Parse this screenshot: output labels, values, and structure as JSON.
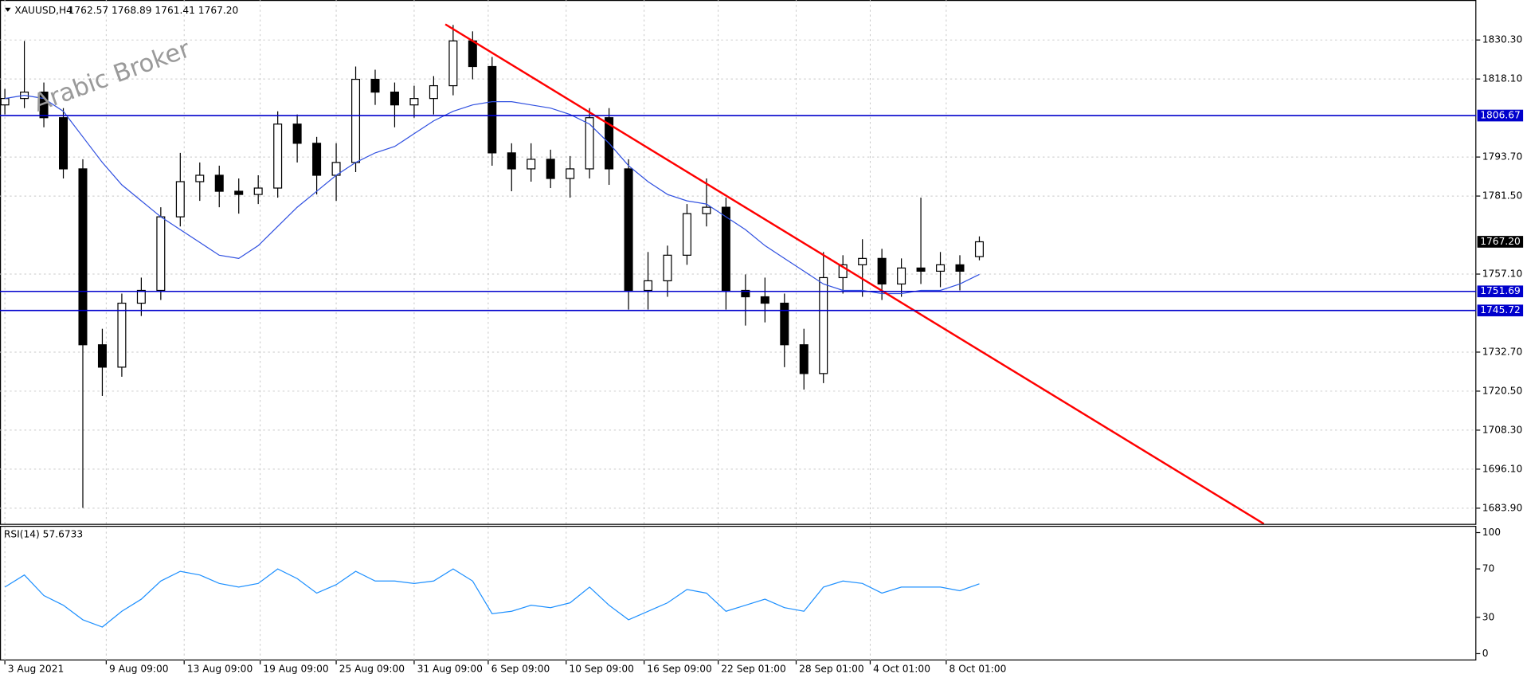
{
  "chart_data": {
    "type": "candlestick",
    "symbol": "XAUUSD,H4",
    "quote": "1762.57 1768.89 1761.41 1767.20",
    "watermark": "Arabic Broker",
    "xlim": [
      -1.25,
      377.5
    ],
    "ylim": [
      1679.0,
      1842.8
    ],
    "x": [
      0,
      5,
      10,
      15,
      20,
      25,
      30,
      35,
      40,
      45,
      50,
      55,
      60,
      65,
      70,
      75,
      80,
      85,
      90,
      95,
      100,
      105,
      110,
      115,
      120,
      125,
      130,
      135,
      140,
      145,
      150,
      155,
      160,
      165,
      170,
      175,
      180,
      185,
      190,
      195,
      200,
      205,
      210,
      215,
      220,
      225,
      230,
      235,
      240,
      245,
      250
    ],
    "open": [
      1810,
      1812,
      1814,
      1806,
      1790,
      1735,
      1728,
      1748,
      1752,
      1775,
      1786,
      1788,
      1783,
      1782,
      1784,
      1804,
      1798,
      1788,
      1792,
      1818,
      1814,
      1810,
      1812,
      1816,
      1830,
      1822,
      1795,
      1790,
      1793,
      1787,
      1790,
      1806,
      1790,
      1752,
      1755,
      1763,
      1776,
      1778,
      1752,
      1750,
      1748,
      1735,
      1726,
      1756,
      1760,
      1762,
      1754,
      1759,
      1758,
      1760,
      1762.57
    ],
    "high": [
      1815,
      1830,
      1817,
      1809,
      1793,
      1740,
      1751,
      1756,
      1778,
      1795,
      1792,
      1791,
      1787,
      1788,
      1808,
      1807,
      1800,
      1798,
      1822,
      1821,
      1817,
      1816,
      1819,
      1835,
      1833,
      1825,
      1798,
      1798,
      1796,
      1794,
      1809,
      1809,
      1793,
      1764,
      1766,
      1779,
      1787,
      1781,
      1757,
      1756,
      1751,
      1740,
      1764,
      1763,
      1768,
      1765,
      1762,
      1781,
      1764,
      1763,
      1768.89
    ],
    "low": [
      1807,
      1809,
      1803,
      1787,
      1684,
      1719,
      1725,
      1744,
      1749,
      1772,
      1780,
      1778,
      1776,
      1779,
      1781,
      1792,
      1782,
      1780,
      1789,
      1810,
      1803,
      1806,
      1807,
      1813,
      1818,
      1791,
      1783,
      1786,
      1784,
      1781,
      1787,
      1785,
      1746,
      1746,
      1750,
      1760,
      1772,
      1746,
      1741,
      1742,
      1728,
      1721,
      1723,
      1751,
      1750,
      1749,
      1750,
      1754,
      1753,
      1752,
      1761.41
    ],
    "close": [
      1812,
      1814,
      1806,
      1790,
      1735,
      1728,
      1748,
      1752,
      1775,
      1786,
      1788,
      1783,
      1782,
      1784,
      1804,
      1798,
      1788,
      1792,
      1818,
      1814,
      1810,
      1812,
      1816,
      1830,
      1822,
      1795,
      1790,
      1793,
      1787,
      1790,
      1806,
      1790,
      1752,
      1755,
      1763,
      1776,
      1778,
      1752,
      1750,
      1748,
      1735,
      1726,
      1756,
      1760,
      1762,
      1754,
      1759,
      1758,
      1760,
      1758,
      1767.2
    ],
    "up_color": "#ffffff",
    "down_color": "#000000",
    "ma": {
      "color": "#3050e0",
      "values": [
        1812,
        1813,
        1812,
        1808,
        1800,
        1792,
        1785,
        1780,
        1775,
        1771,
        1767,
        1763,
        1762,
        1766,
        1772,
        1778,
        1783,
        1788,
        1792,
        1795,
        1797,
        1801,
        1805,
        1808,
        1810,
        1811,
        1811,
        1810,
        1809,
        1807,
        1804,
        1798,
        1791,
        1786,
        1782,
        1780,
        1779,
        1775,
        1771,
        1766,
        1762,
        1758,
        1754,
        1752,
        1752,
        1751,
        1751,
        1752,
        1752,
        1754,
        1757
      ]
    },
    "trendline": {
      "color": "#ff0000",
      "x": [
        113,
        323
      ],
      "y": [
        1835.2,
        1679.0
      ]
    },
    "hlines": [
      1806.67,
      1751.69,
      1745.72
    ],
    "hline_color": "#0000cc",
    "last_price": {
      "value": 1767.2,
      "label": "1767.20"
    },
    "yticks": [
      {
        "value": 1830.3,
        "label": "1830.30"
      },
      {
        "value": 1818.1,
        "label": "1818.10"
      },
      {
        "value": 1793.7,
        "label": "1793.70"
      },
      {
        "value": 1781.5,
        "label": "1781.50"
      },
      {
        "value": 1757.1,
        "label": "1757.10"
      },
      {
        "value": 1732.7,
        "label": "1732.70"
      },
      {
        "value": 1720.5,
        "label": "1720.50"
      },
      {
        "value": 1708.3,
        "label": "1708.30"
      },
      {
        "value": 1696.1,
        "label": "1696.10"
      },
      {
        "value": 1683.9,
        "label": "1683.90"
      }
    ],
    "xticks": [
      {
        "value": 0,
        "label": "3 Aug 2021"
      },
      {
        "value": 26,
        "label": "9 Aug 09:00"
      },
      {
        "value": 46,
        "label": "13 Aug 09:00"
      },
      {
        "value": 65.5,
        "label": "19 Aug 09:00"
      },
      {
        "value": 85,
        "label": "25 Aug 09:00"
      },
      {
        "value": 105,
        "label": "31 Aug 09:00"
      },
      {
        "value": 124,
        "label": "6 Sep 09:00"
      },
      {
        "value": 144,
        "label": "10 Sep 09:00"
      },
      {
        "value": 164,
        "label": "16 Sep 09:00"
      },
      {
        "value": 183,
        "label": "22 Sep 01:00"
      },
      {
        "value": 203,
        "label": "28 Sep 01:00"
      },
      {
        "value": 222,
        "label": "4 Oct 01:00"
      },
      {
        "value": 241.5,
        "label": "8 Oct 01:00"
      }
    ],
    "grid": true,
    "rsi": {
      "label": "RSI(14) 57.6733",
      "color": "#1e90ff",
      "ylim": [
        -5.6,
        104.8
      ],
      "yticks": [
        100,
        70,
        30,
        0
      ],
      "values": [
        55,
        65,
        48,
        40,
        28,
        22,
        35,
        45,
        60,
        68,
        65,
        58,
        55,
        58,
        70,
        62,
        50,
        57,
        68,
        60,
        60,
        58,
        60,
        70,
        60,
        33,
        35,
        40,
        38,
        42,
        55,
        40,
        28,
        35,
        42,
        53,
        50,
        35,
        40,
        45,
        38,
        35,
        55,
        60,
        58,
        50,
        55,
        55,
        55,
        52,
        57.6733
      ]
    }
  }
}
